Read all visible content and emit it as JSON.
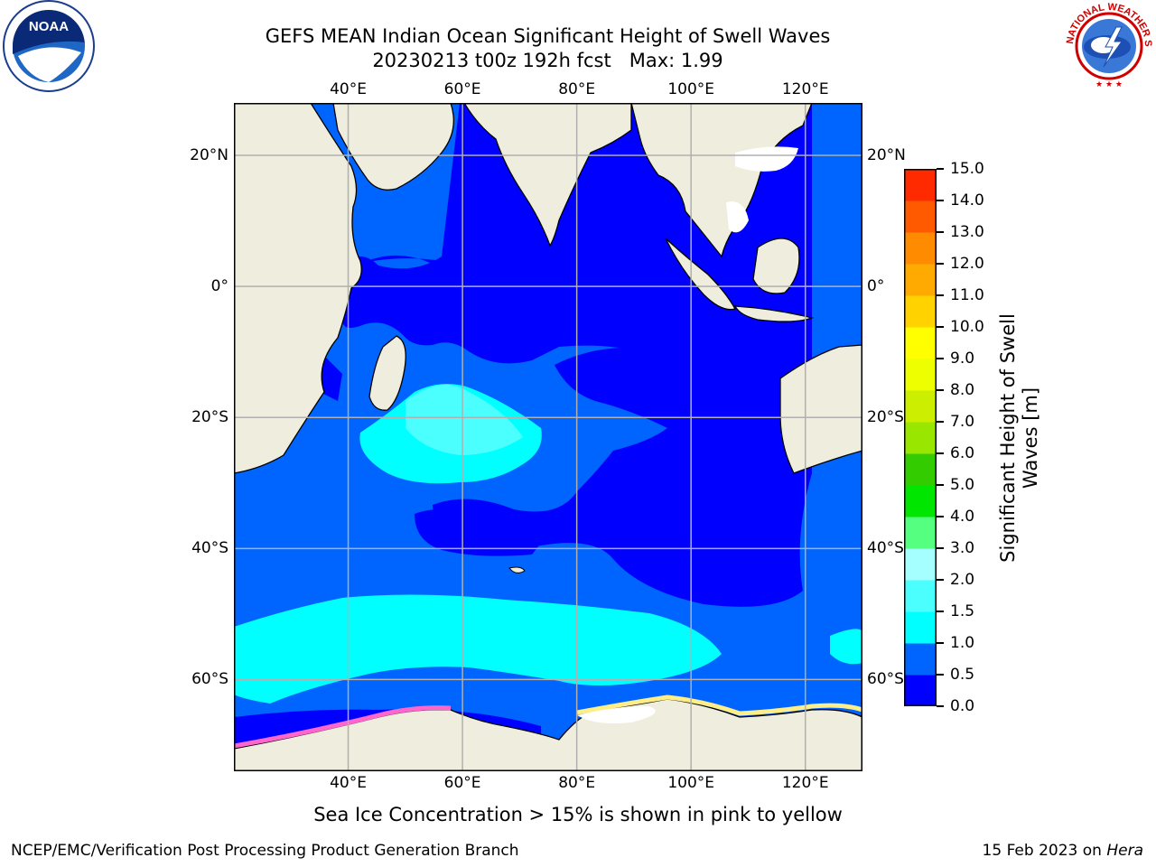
{
  "title": {
    "line1": "GEFS MEAN Indian Ocean Significant Height of Swell Waves",
    "line2": "20230213 t00z 192h fcst   Max: 1.99"
  },
  "axes": {
    "lon_labels": [
      "40°E",
      "60°E",
      "80°E",
      "100°E",
      "120°E"
    ],
    "lat_labels_left": [
      "20°N",
      "0°",
      "20°S",
      "40°S",
      "60°S"
    ],
    "lat_labels_right": [
      "20°N",
      "0°",
      "20°S",
      "40°S",
      "60°S"
    ],
    "lon_range": [
      20,
      130
    ],
    "lat_range": [
      -74,
      28
    ],
    "grid": true
  },
  "colorbar": {
    "label": "Significant Height of Swell\nWaves [m]",
    "ticks": [
      "0.0",
      "0.5",
      "1.0",
      "1.5",
      "2.0",
      "3.0",
      "4.0",
      "5.0",
      "6.0",
      "7.0",
      "8.0",
      "9.0",
      "10.0",
      "11.0",
      "12.0",
      "13.0",
      "14.0",
      "15.0"
    ],
    "colors": [
      "#0000ff",
      "#0064ff",
      "#00ffff",
      "#4cffff",
      "#a6ffff",
      "#55ff80",
      "#00e600",
      "#33cc00",
      "#99e600",
      "#ccee00",
      "#eeff00",
      "#ffff00",
      "#ffd200",
      "#ffaa00",
      "#ff8c00",
      "#ff5a00",
      "#ff2a00"
    ]
  },
  "colors": {
    "land": "#eeedde",
    "ocean_low": "#0000ff",
    "ocean_mid": "#0064ff",
    "ocean_high": "#00ffff",
    "ocean_higher": "#4cffff",
    "sea_ice": [
      "#ff66cc",
      "#ffee00",
      "#ffffff"
    ]
  },
  "footnote": "Sea Ice Concentration > 15% is shown in pink to yellow",
  "credit": "NCEP/EMC/Verification Post Processing Product Generation Branch",
  "date": {
    "text": "15 Feb 2023 on ",
    "machine": "Hera"
  },
  "logos": {
    "left": "NOAA",
    "right": "NATIONAL WEATHER SERVICE"
  }
}
